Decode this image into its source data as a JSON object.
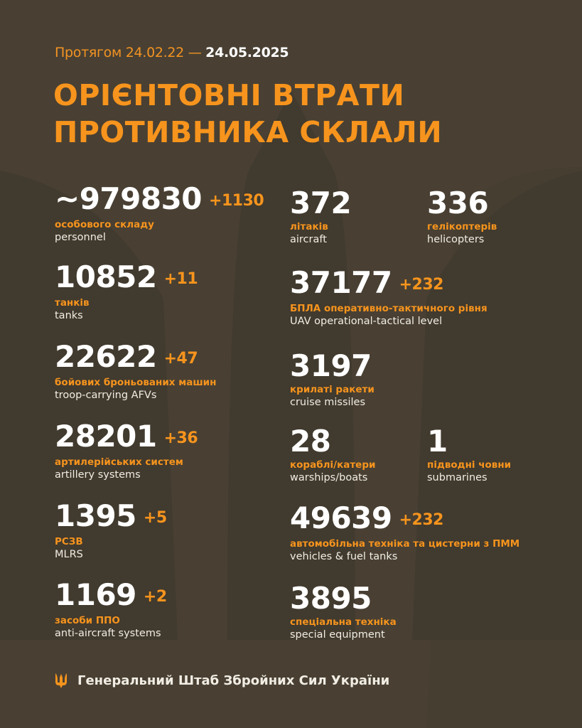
{
  "header": {
    "period_prefix": "Протягом 24.02.22 —",
    "period_end": "24.05.2025",
    "title_line1": "ОРІЄНТОВНІ ВТРАТИ",
    "title_line2": "ПРОТИВНИКА СКЛАЛИ"
  },
  "left": [
    {
      "value": "~979830",
      "increment": "+1130",
      "ua": "особового складу",
      "en": "personnel"
    },
    {
      "value": "10852",
      "increment": "+11",
      "ua": "танків",
      "en": "tanks"
    },
    {
      "value": "22622",
      "increment": "+47",
      "ua": "бойових броньованих машин",
      "en": "troop-carrying AFVs"
    },
    {
      "value": "28201",
      "increment": "+36",
      "ua": "артилерійських систем",
      "en": "artillery systems"
    },
    {
      "value": "1395",
      "increment": "+5",
      "ua": "РСЗВ",
      "en": "MLRS"
    },
    {
      "value": "1169",
      "increment": "+2",
      "ua": "засоби ППО",
      "en": "anti-aircraft systems"
    }
  ],
  "right": [
    {
      "value": "372",
      "increment": "",
      "ua": "літаків",
      "en": "aircraft"
    },
    {
      "value": "336",
      "increment": "",
      "ua": "гелікоптерів",
      "en": "helicopters"
    },
    {
      "value": "37177",
      "increment": "+232",
      "ua": "БПЛА оперативно-тактичного рівня",
      "en": "UAV operational-tactical level"
    },
    {
      "value": "3197",
      "increment": "",
      "ua": "крилаті ракети",
      "en": "cruise missiles"
    },
    {
      "value": "28",
      "increment": "",
      "ua": "кораблі/катери",
      "en": "warships/boats"
    },
    {
      "value": "1",
      "increment": "",
      "ua": "підводні човни",
      "en": "submarines"
    },
    {
      "value": "49639",
      "increment": "+232",
      "ua": "автомобільна техніка та цистерни з ПММ",
      "en": "vehicles & fuel tanks"
    },
    {
      "value": "3895",
      "increment": "",
      "ua": "спеціальна техніка",
      "en": "special equipment"
    }
  ],
  "footer": {
    "text": "Генеральний Штаб Збройних Сил України",
    "icon": "trident-icon"
  },
  "colors": {
    "background": "#463e31",
    "accent": "#f7941d",
    "text": "#ffffff"
  }
}
